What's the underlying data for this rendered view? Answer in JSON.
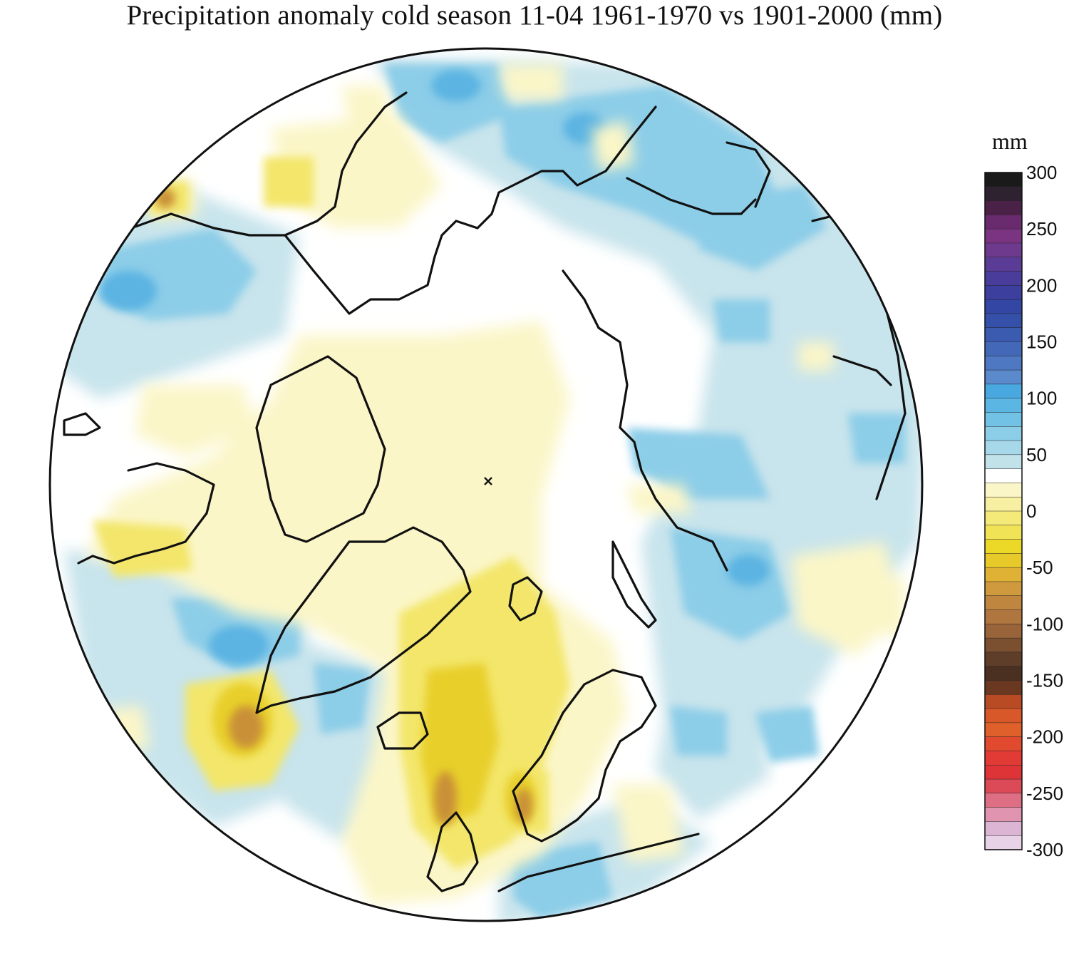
{
  "title": "Precipitation anomaly cold season 11-04 1961-1970 vs 1901-2000 (mm)",
  "projection": "north polar stereographic",
  "legend": {
    "unit": "mm",
    "min": -300,
    "max": 300,
    "step": 12.5,
    "tick_labels": [
      "300",
      "250",
      "200",
      "150",
      "100",
      "50",
      "0",
      "-50",
      "-100",
      "-150",
      "-200",
      "-250",
      "-300"
    ],
    "tick_values": [
      300,
      250,
      200,
      150,
      100,
      50,
      0,
      -50,
      -100,
      -150,
      -200,
      -250,
      -300
    ],
    "colors_top_to_bottom": [
      "#1a1a1a",
      "#2e2230",
      "#4a2248",
      "#6a2a6e",
      "#7a3482",
      "#6e3a8e",
      "#5a3c96",
      "#4a3c9a",
      "#3c3f9e",
      "#3446a4",
      "#3450a8",
      "#3a5bb0",
      "#4468b8",
      "#4f78c2",
      "#5a8acc",
      "#4aa8e0",
      "#5bb6e4",
      "#72c2e6",
      "#8ccde8",
      "#a6d8ea",
      "#c2e2ea",
      "#ffffff",
      "#fbf6c8",
      "#f7f0a2",
      "#f4ea7a",
      "#f1e356",
      "#ecd826",
      "#e8c92a",
      "#dfb236",
      "#cf9a3e",
      "#bf8640",
      "#b07640",
      "#9a643a",
      "#7a5030",
      "#5e3e28",
      "#4a3020",
      "#6a3820",
      "#b84a24",
      "#d8582a",
      "#e0602c",
      "#e24a30",
      "#e23a34",
      "#de3438",
      "#dc4a58",
      "#de6e84",
      "#e094b0",
      "#dcb4d4",
      "#e8d2e8"
    ]
  },
  "anomaly_colors": {
    "strong_wet": "#3e8fd2",
    "wet": "#5cb4e2",
    "moderately_wet": "#8ccde8",
    "slightly_wet": "#c8e4ec",
    "neutral": "#ffffff",
    "slightly_dry": "#fbf6c8",
    "dry": "#f3e66a",
    "moderately_dry": "#e8cf2c",
    "strong_dry": "#c99038",
    "very_dry": "#9a6236"
  }
}
